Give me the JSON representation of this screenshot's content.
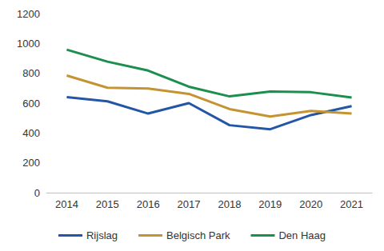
{
  "chart_data": {
    "type": "line",
    "categories": [
      "2014",
      "2015",
      "2016",
      "2017",
      "2018",
      "2019",
      "2020",
      "2021"
    ],
    "series": [
      {
        "name": "Rijslag",
        "color": "#2456a6",
        "values": [
          640,
          612,
          530,
          600,
          452,
          425,
          520,
          580
        ]
      },
      {
        "name": "Belgisch Park",
        "color": "#c59432",
        "values": [
          785,
          703,
          698,
          662,
          560,
          510,
          548,
          530
        ]
      },
      {
        "name": "Den Haag",
        "color": "#1c8f4f",
        "values": [
          958,
          878,
          818,
          710,
          645,
          678,
          673,
          638
        ]
      }
    ],
    "ylim": [
      0,
      1200
    ],
    "yticks": [
      0,
      200,
      400,
      600,
      800,
      1000,
      1200
    ],
    "grid": false,
    "legend": "bottom"
  }
}
